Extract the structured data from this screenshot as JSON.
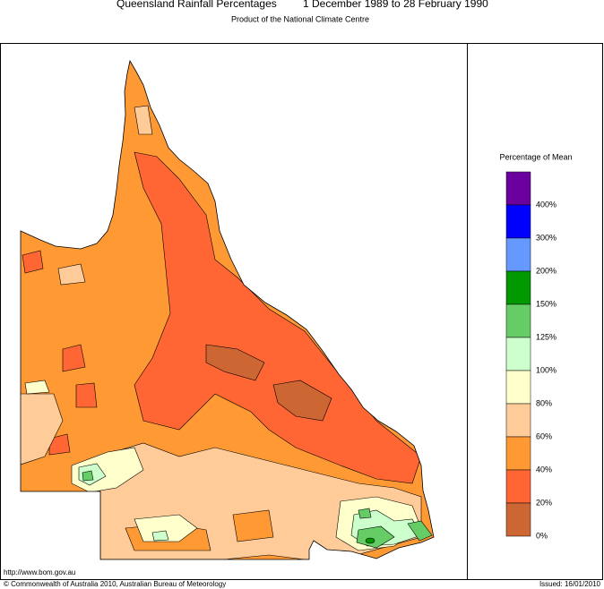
{
  "title": "Queensland Rainfall Percentages",
  "period": "1 December 1989 to 28 February 1990",
  "subtitle": "Product of the National Climate Centre",
  "legend": {
    "title": "Percentage of Mean",
    "colors": [
      "#6a009e",
      "#0000ff",
      "#6699ff",
      "#009900",
      "#66cc66",
      "#ccffcc",
      "#ffffcc",
      "#ffcc99",
      "#ff9933",
      "#ff6633",
      "#cc6633"
    ],
    "labels": [
      "400%",
      "300%",
      "200%",
      "150%",
      "125%",
      "100%",
      "80%",
      "60%",
      "40%",
      "20%",
      "0%"
    ]
  },
  "footer": {
    "url": "http://www.bom.gov.au",
    "copyright": "© Commonwealth of Australia 2010, Australian Bureau of Meteorology",
    "issued": "Issued: 16/01/2010"
  }
}
